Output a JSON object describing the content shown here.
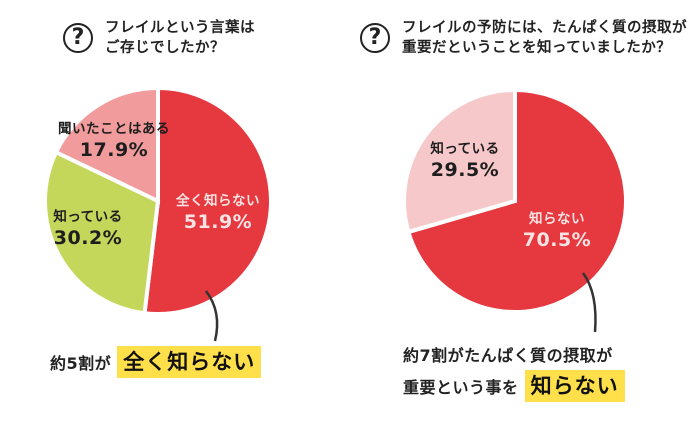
{
  "left": {
    "question_line1": "フレイルという言葉は",
    "question_line2": "ご存じでしたか？",
    "question_icon": "?",
    "slices": [
      {
        "label": "全く知らない",
        "pct": "51.9%"
      },
      {
        "label": "知っている",
        "pct": "30.2%"
      },
      {
        "label": "聞いたことはある",
        "pct": "17.9%"
      }
    ],
    "callout_prefix": "約5割が",
    "callout_highlight": "全く知らない"
  },
  "right": {
    "question_line1": "フレイルの予防には、たんぱく質の摂取が",
    "question_line2": "重要だということを知っていましたか？",
    "question_icon": "?",
    "slices": [
      {
        "label": "知らない",
        "pct": "70.5%"
      },
      {
        "label": "知っている",
        "pct": "29.5%"
      }
    ],
    "callout_line1": "約7割がたんぱく質の摂取が",
    "callout_line2_prefix": "重要という事を",
    "callout_highlight": "知らない"
  },
  "colors": {
    "red": "#e5383f",
    "green": "#c4d75a",
    "pink": "#f29b9c",
    "light_pink": "#f6c8c9",
    "highlight": "#ffe04a"
  },
  "chart_data": [
    {
      "type": "pie",
      "title": "フレイルという言葉はご存じでしたか？",
      "categories": [
        "全く知らない",
        "知っている",
        "聞いたことはある"
      ],
      "values": [
        51.9,
        30.2,
        17.9
      ],
      "colors": [
        "#e5383f",
        "#c4d75a",
        "#f29b9c"
      ],
      "annotation": "約5割が全く知らない"
    },
    {
      "type": "pie",
      "title": "フレイルの予防には、たんぱく質の摂取が重要だということを知っていましたか？",
      "categories": [
        "知らない",
        "知っている"
      ],
      "values": [
        70.5,
        29.5
      ],
      "colors": [
        "#e5383f",
        "#f6c8c9"
      ],
      "annotation": "約7割がたんぱく質の摂取が重要という事を知らない"
    }
  ]
}
